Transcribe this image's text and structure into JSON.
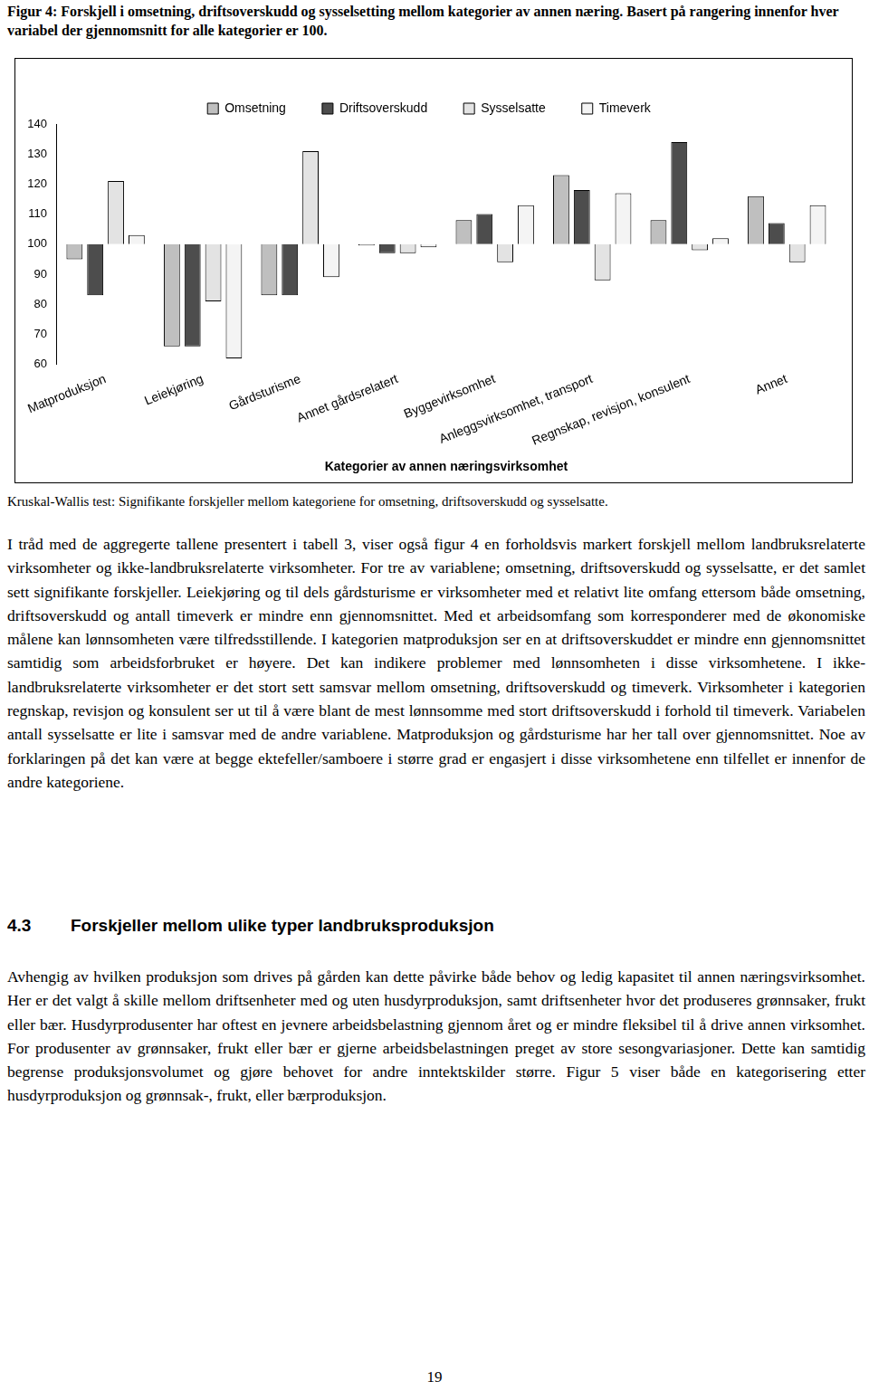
{
  "caption": "Figur 4: Forskjell i omsetning, driftsoverskudd og sysselsetting mellom kategorier av annen næring. Basert på rangering innenfor hver variabel der gjennomsnitt for alle kategorier er 100.",
  "chart_data": {
    "type": "bar",
    "x_label": "Kategorier av annen næringsvirksomhet",
    "categories": [
      "Matproduksjon",
      "Leiekjøring",
      "Gårdsturisme",
      "Annet gårdsrelatert",
      "Byggevirksomhet",
      "Anleggsvirksomhet, transport",
      "Regnskap, revisjon, konsulent",
      "Annet"
    ],
    "baseline": 100,
    "series": [
      {
        "name": "Omsetning",
        "color": "#bfbfbf",
        "values": [
          95,
          66,
          83,
          99.6,
          108,
          123,
          108,
          116
        ]
      },
      {
        "name": "Driftsoverskudd",
        "color": "#4d4d4d",
        "values": [
          83,
          66,
          83,
          97,
          110,
          118,
          134,
          107
        ]
      },
      {
        "name": "Sysselsatte",
        "color": "#e3e3e3",
        "values": [
          121,
          81,
          131,
          97,
          94,
          88,
          98,
          94
        ]
      },
      {
        "name": "Timeverk",
        "color": "#f4f4f4",
        "values": [
          103,
          62,
          89,
          99,
          113,
          117,
          102,
          113
        ]
      }
    ],
    "ylim": [
      60,
      140
    ],
    "yticks": [
      60,
      70,
      80,
      90,
      100,
      110,
      120,
      130,
      140
    ],
    "grid": false,
    "legend": "top"
  },
  "note": "Kruskal-Wallis test: Signifikante forskjeller mellom kategoriene for omsetning, driftsoverskudd og sysselsatte.",
  "body1": "I tråd med de aggregerte tallene presentert i tabell 3, viser også figur 4 en forholdsvis markert forskjell mellom landbruksrelaterte virksomheter og ikke-landbruksrelaterte virksomheter. For tre av variablene; omsetning, driftsoverskudd og sysselsatte, er det samlet sett signifikante forskjeller. Leiekjøring og til dels gårdsturisme er virksomheter med et relativt lite omfang ettersom både omsetning, driftsoverskudd og antall timeverk er mindre enn gjennomsnittet. Med et arbeidsomfang som korresponderer med de økonomiske målene kan lønnsomheten være tilfredsstillende. I kategorien matproduksjon ser en at driftsoverskuddet er mindre enn gjennomsnittet samtidig som arbeidsforbruket er høyere. Det kan indikere problemer med lønnsomheten i disse virksomhetene. I ikke-landbruksrelaterte virksomheter er det stort sett samsvar mellom omsetning, driftsoverskudd og timeverk. Virksomheter i kategorien regnskap, revisjon og konsulent ser ut til å være blant de mest lønnsomme med stort driftsoverskudd i forhold til timeverk. Variabelen antall sysselsatte er lite i samsvar med de andre variablene. Matproduksjon og gårdsturisme har her tall over gjennomsnittet. Noe av forklaringen på det kan være at begge ektefeller/samboere i større grad er engasjert i disse virksomhetene enn tilfellet er innenfor de andre kategoriene.",
  "heading": {
    "number": "4.3",
    "title": "Forskjeller mellom ulike typer landbruksproduksjon"
  },
  "body2": "Avhengig av hvilken produksjon som drives på gården kan dette påvirke både behov og ledig kapasitet til annen næringsvirksomhet. Her er det valgt å skille mellom driftsenheter med og uten husdyrproduksjon, samt driftsenheter hvor det produseres grønnsaker, frukt eller bær. Husdyrprodusenter har oftest en jevnere arbeidsbelastning gjennom året og er mindre fleksibel til å drive annen virksomhet. For produsenter av grønnsaker, frukt eller bær er gjerne arbeidsbelastningen preget av store sesongvariasjoner. Dette kan samtidig begrense produksjonsvolumet og gjøre behovet for andre inntektskilder større. Figur 5 viser både en kategorisering etter husdyrproduksjon og grønnsak-, frukt, eller bærproduksjon.",
  "page_number": "19"
}
